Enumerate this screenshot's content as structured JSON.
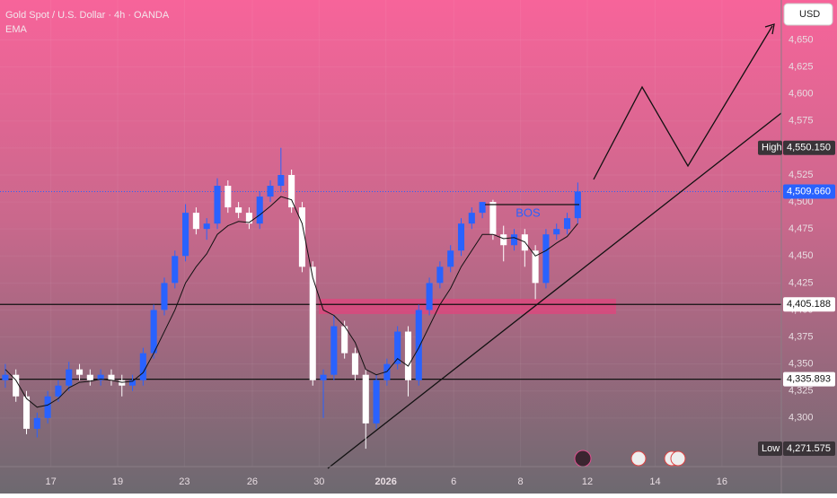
{
  "chart_data": {
    "type": "candlestick",
    "title": "Gold Spot / U.S. Dollar · 4h · OANDA",
    "indicator": "EMA",
    "currency": "USD",
    "annotation": "BOS",
    "up_color": "#2962ff",
    "down_color": "#ffffff",
    "ema_color": "#111111",
    "x": [
      0,
      1,
      2,
      3,
      4,
      5,
      6,
      7,
      8,
      9,
      10,
      11,
      12,
      13,
      14,
      15,
      16,
      17,
      18,
      19,
      20,
      21,
      22,
      23,
      24,
      25,
      26,
      27,
      28,
      29,
      30,
      31,
      32,
      33,
      34,
      35,
      36,
      37,
      38,
      39,
      40,
      41,
      42,
      43,
      44,
      45,
      46,
      47,
      48,
      49,
      50,
      51,
      52,
      53,
      54
    ],
    "open": [
      4335,
      4340,
      4320,
      4290,
      4300,
      4320,
      4330,
      4345,
      4340,
      4335,
      4340,
      4335,
      4330,
      4335,
      4360,
      4400,
      4425,
      4450,
      4490,
      4475,
      4480,
      4515,
      4495,
      4490,
      4480,
      4505,
      4515,
      4525,
      4495,
      4440,
      4335,
      4340,
      4385,
      4360,
      4340,
      4295,
      4335,
      4350,
      4380,
      4335,
      4400,
      4425,
      4440,
      4455,
      4480,
      4490,
      4500,
      4470,
      4460,
      4470,
      4455,
      4425,
      4470,
      4475,
      4485
    ],
    "high": [
      4350,
      4345,
      4325,
      4305,
      4325,
      4335,
      4352,
      4350,
      4345,
      4345,
      4345,
      4340,
      4340,
      4365,
      4405,
      4430,
      4455,
      4498,
      4495,
      4485,
      4522,
      4520,
      4500,
      4495,
      4510,
      4520,
      4550.15,
      4530,
      4500,
      4445,
      4345,
      4395,
      4390,
      4365,
      4345,
      4340,
      4355,
      4385,
      4385,
      4405,
      4430,
      4445,
      4460,
      4485,
      4495,
      4500,
      4502,
      4478,
      4475,
      4475,
      4460,
      4475,
      4480,
      4490,
      4518
    ],
    "low": [
      4328,
      4315,
      4285,
      4282,
      4295,
      4315,
      4325,
      4335,
      4330,
      4330,
      4330,
      4320,
      4325,
      4330,
      4355,
      4395,
      4420,
      4445,
      4470,
      4465,
      4475,
      4490,
      4485,
      4475,
      4475,
      4500,
      4510,
      4490,
      4435,
      4330,
      4300,
      4335,
      4355,
      4335,
      4271.575,
      4290,
      4330,
      4345,
      4320,
      4330,
      4395,
      4420,
      4435,
      4450,
      4475,
      4485,
      4465,
      4445,
      4455,
      4440,
      4410,
      4420,
      4465,
      4470,
      4480
    ],
    "close": [
      4340,
      4320,
      4290,
      4300,
      4320,
      4330,
      4345,
      4340,
      4335,
      4340,
      4335,
      4330,
      4335,
      4360,
      4400,
      4425,
      4450,
      4490,
      4475,
      4480,
      4515,
      4495,
      4490,
      4480,
      4505,
      4515,
      4525,
      4495,
      4440,
      4335,
      4340,
      4385,
      4360,
      4340,
      4295,
      4335,
      4350,
      4380,
      4335,
      4400,
      4425,
      4440,
      4455,
      4480,
      4490,
      4500,
      4470,
      4460,
      4470,
      4455,
      4425,
      4470,
      4475,
      4485,
      4509.66
    ],
    "ema": [
      4345,
      4335,
      4318,
      4310,
      4312,
      4318,
      4328,
      4333,
      4334,
      4336,
      4335,
      4333,
      4334,
      4342,
      4360,
      4380,
      4400,
      4425,
      4440,
      4452,
      4470,
      4478,
      4482,
      4481,
      4488,
      4496,
      4505,
      4502,
      4480,
      4430,
      4400,
      4395,
      4385,
      4370,
      4345,
      4340,
      4343,
      4355,
      4348,
      4365,
      4385,
      4405,
      4420,
      4440,
      4455,
      4470,
      4470,
      4466,
      4467,
      4463,
      4450,
      4455,
      4462,
      4468,
      4480
    ],
    "xlim": [
      -0.5,
      73.2
    ],
    "xticks": [
      {
        "value": 4.3,
        "label": "17"
      },
      {
        "value": 10.6,
        "label": "19"
      },
      {
        "value": 16.9,
        "label": "23"
      },
      {
        "value": 23.3,
        "label": "26"
      },
      {
        "value": 29.6,
        "label": "30"
      },
      {
        "value": 35.9,
        "label": "2026"
      },
      {
        "value": 42.3,
        "label": "6"
      },
      {
        "value": 48.6,
        "label": "8"
      },
      {
        "value": 54.9,
        "label": "12"
      },
      {
        "value": 61.3,
        "label": "14"
      },
      {
        "value": 67.6,
        "label": "16"
      }
    ],
    "ylim": [
      4255,
      4687
    ],
    "yticks": [
      {
        "value": 4300,
        "label": "4,300"
      },
      {
        "value": 4325,
        "label": "4,325"
      },
      {
        "value": 4350,
        "label": "4,350"
      },
      {
        "value": 4375,
        "label": "4,375"
      },
      {
        "value": 4400,
        "label": "4,400"
      },
      {
        "value": 4425,
        "label": "4,425"
      },
      {
        "value": 4450,
        "label": "4,450"
      },
      {
        "value": 4475,
        "label": "4,475"
      },
      {
        "value": 4500,
        "label": "4,500"
      },
      {
        "value": 4525,
        "label": "4,525"
      },
      {
        "value": 4550,
        "label": "4,550"
      },
      {
        "value": 4575,
        "label": "4,575"
      },
      {
        "value": 4600,
        "label": "4,600"
      },
      {
        "value": 4625,
        "label": "4,625"
      },
      {
        "value": 4650,
        "label": "4,650"
      }
    ],
    "price_labels": [
      {
        "name": "High",
        "value": 4550.15,
        "label": "4,550.150",
        "line": "none"
      },
      {
        "value": 4509.66,
        "label": "4,509.660",
        "line": "dotted"
      },
      {
        "value": 4405.188,
        "label": "4,405.188",
        "line": "solid"
      },
      {
        "value": 4335.893,
        "label": "4,335.893",
        "line": "solid"
      },
      {
        "name": "Low",
        "value": 4271.575,
        "label": "4,271.575",
        "line": "none"
      }
    ]
  }
}
